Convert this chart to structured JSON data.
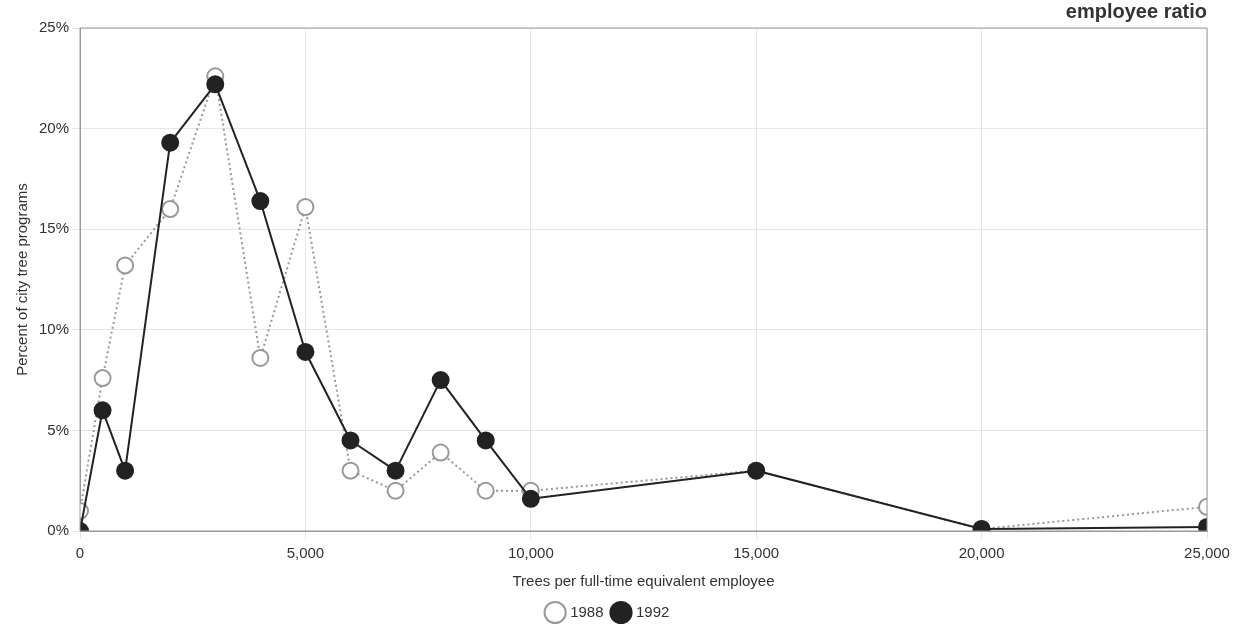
{
  "chart_data": {
    "type": "line",
    "title": "employee ratio",
    "xlabel": "Trees per full-time equivalent employee",
    "ylabel": "Percent of city tree programs",
    "series": [
      {
        "name": "1988",
        "color": "#999999",
        "line_style": "dotted",
        "marker": "circle",
        "x": [
          0,
          500,
          1000,
          2000,
          3000,
          4000,
          5000,
          6000,
          7000,
          8000,
          9000,
          10000,
          15000,
          20000,
          25000
        ],
        "values": [
          1.0,
          7.6,
          13.2,
          16.0,
          22.6,
          8.6,
          16.1,
          3.0,
          2.0,
          3.9,
          2.0,
          2.0,
          3.0,
          0.1,
          1.2
        ]
      },
      {
        "name": "1992",
        "color": "#222222",
        "line_style": "solid",
        "marker": "circle",
        "x": [
          0,
          500,
          1000,
          2000,
          3000,
          4000,
          5000,
          6000,
          7000,
          8000,
          9000,
          10000,
          15000,
          20000,
          25000
        ],
        "values": [
          0,
          6.0,
          3.0,
          19.3,
          22.2,
          16.4,
          8.9,
          4.5,
          3.0,
          7.5,
          4.5,
          1.6,
          3.0,
          0.1,
          0.2
        ]
      }
    ],
    "xlim": [
      0,
      25000
    ],
    "xticks": [
      0,
      {
        "value": 5000,
        "label": "5,000"
      },
      {
        "value": 10000,
        "label": "10,000"
      },
      {
        "value": 15000,
        "label": "15,000"
      },
      {
        "value": 20000,
        "label": "20,000"
      },
      {
        "value": 25000,
        "label": "25,000"
      }
    ],
    "ylim": [
      0,
      25
    ],
    "yticks": [
      {
        "value": 0,
        "label": "0%"
      },
      {
        "value": 5,
        "label": "5%"
      },
      {
        "value": 10,
        "label": "10%"
      },
      {
        "value": 15,
        "label": "15%"
      },
      {
        "value": 20,
        "label": "20%"
      },
      {
        "value": 25,
        "label": "25%"
      }
    ],
    "grid": true,
    "legend": "bottom"
  }
}
